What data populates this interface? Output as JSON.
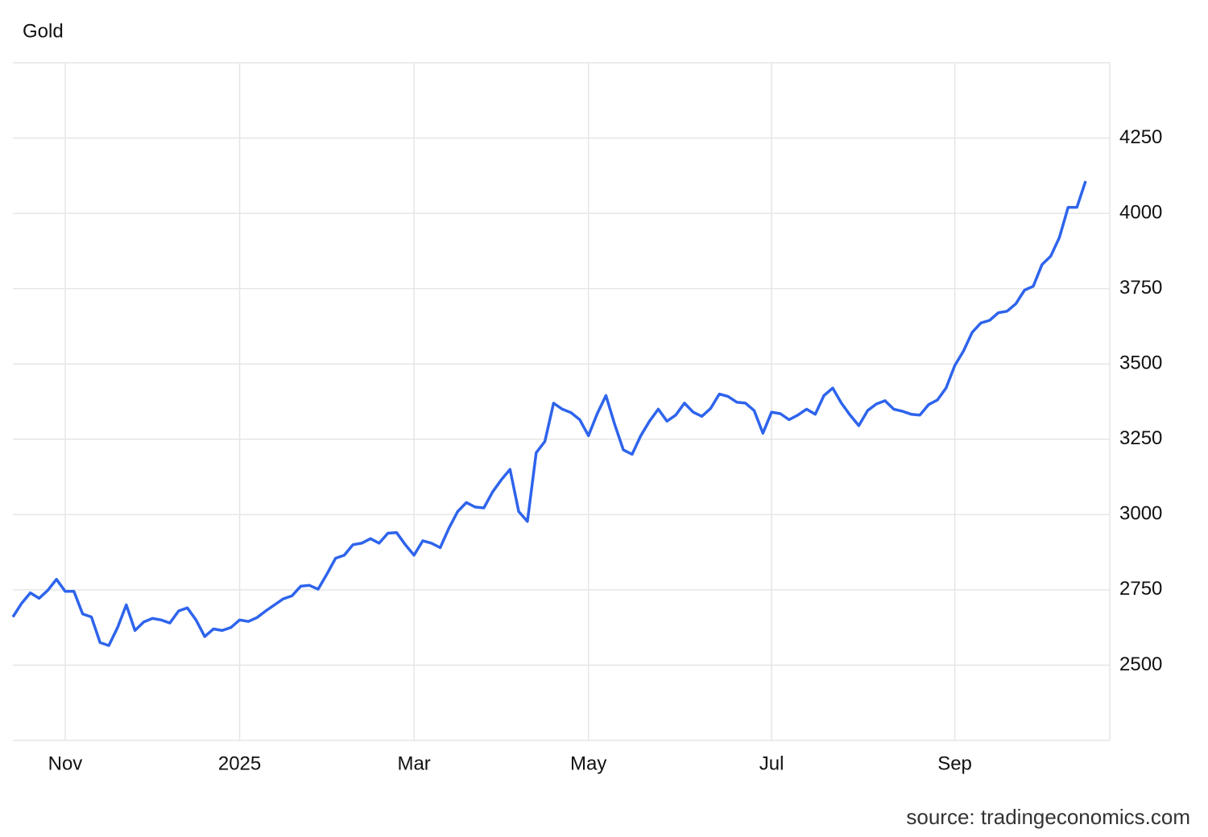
{
  "chart_data": {
    "type": "line",
    "title": "Gold",
    "source": "source: tradingeconomics.com",
    "categories": [
      null,
      null,
      null,
      null,
      null,
      null,
      "Nov",
      null,
      null,
      null,
      null,
      null,
      null,
      null,
      null,
      null,
      null,
      null,
      null,
      null,
      null,
      null,
      null,
      null,
      null,
      null,
      "2025",
      null,
      null,
      null,
      null,
      null,
      null,
      null,
      null,
      null,
      null,
      null,
      null,
      null,
      null,
      null,
      null,
      null,
      null,
      null,
      "Mar",
      null,
      null,
      null,
      null,
      null,
      null,
      null,
      null,
      null,
      null,
      null,
      null,
      null,
      null,
      null,
      null,
      null,
      null,
      null,
      "May",
      null,
      null,
      null,
      null,
      null,
      null,
      null,
      null,
      null,
      null,
      null,
      null,
      null,
      null,
      null,
      null,
      null,
      null,
      null,
      null,
      "Jul",
      null,
      null,
      null,
      null,
      null,
      null,
      null,
      null,
      null,
      null,
      null,
      null,
      null,
      null,
      null,
      null,
      null,
      null,
      null,
      null,
      "Sep",
      null,
      null,
      null,
      null,
      null,
      null,
      null,
      null,
      null,
      null,
      null,
      null,
      null,
      null,
      null
    ],
    "series": [
      {
        "color": "#2e64ec",
        "values": [
          2660,
          2705,
          2740,
          2722,
          2748,
          2785,
          2745,
          2745,
          2670,
          2660,
          2575,
          2565,
          2625,
          2700,
          2615,
          2643,
          2655,
          2650,
          2640,
          2680,
          2690,
          2650,
          2595,
          2620,
          2615,
          2625,
          2650,
          2645,
          2658,
          2680,
          2700,
          2720,
          2730,
          2762,
          2765,
          2752,
          2802,
          2855,
          2865,
          2900,
          2905,
          2920,
          2905,
          2938,
          2940,
          2900,
          2865,
          2913,
          2905,
          2890,
          2955,
          3010,
          3040,
          3025,
          3022,
          3075,
          3115,
          3150,
          3010,
          2977,
          3205,
          3243,
          3370,
          3350,
          3338,
          3315,
          3262,
          3335,
          3395,
          3300,
          3215,
          3200,
          3262,
          3310,
          3350,
          3310,
          3330,
          3370,
          3340,
          3326,
          3352,
          3400,
          3392,
          3373,
          3370,
          3345,
          3270,
          3340,
          3335,
          3315,
          3330,
          3350,
          3333,
          3395,
          3420,
          3370,
          3330,
          3295,
          3345,
          3367,
          3378,
          3350,
          3343,
          3333,
          3330,
          3365,
          3380,
          3420,
          3495,
          3543,
          3605,
          3636,
          3645,
          3670,
          3675,
          3700,
          3745,
          3758,
          3830,
          3858,
          3920,
          4020,
          4020,
          4107
        ]
      }
    ],
    "ylim": [
      2250,
      4500
    ],
    "yticks": [
      2500,
      2750,
      3000,
      3250,
      3500,
      3750,
      4000,
      4250
    ],
    "grid": true
  }
}
